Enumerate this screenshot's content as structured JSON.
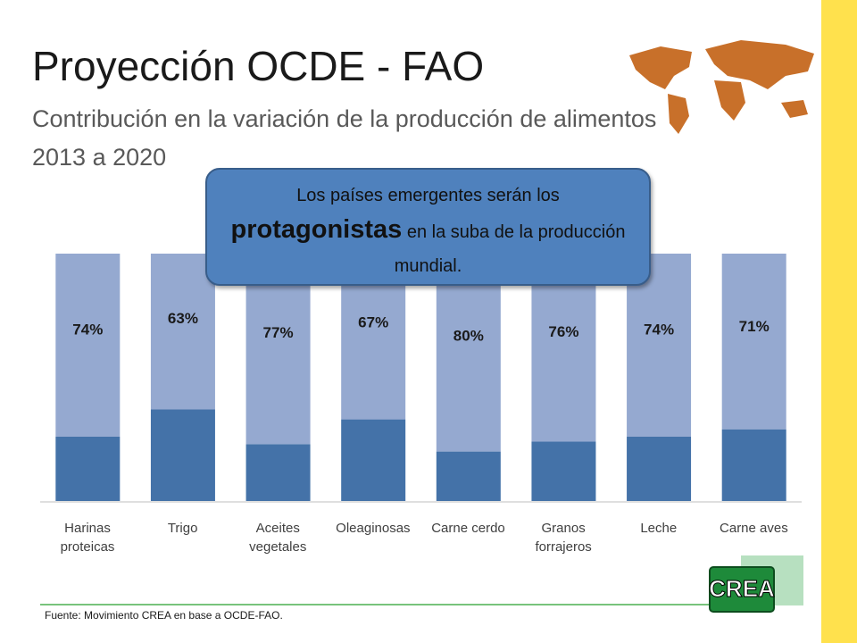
{
  "title": "Proyección OCDE - FAO",
  "subtitle": [
    "Contribución en la variación de la producción de alimentos",
    "2013 a 2020"
  ],
  "callout": {
    "before": "Los países emergentes serán los",
    "bold": "protagonistas",
    "after": "en la suba de la producción mundial."
  },
  "source": "Fuente: Movimiento CREA en base a OCDE-FAO.",
  "logo": "CREA",
  "chart_data": {
    "type": "stacked_bar",
    "categories": [
      "Harinas\nproteicas",
      "Trigo",
      "Aceites\nvegetales",
      "Oleaginosas",
      "Carne cerdo",
      "Granos\nforrajeros",
      "Leche",
      "Carne aves"
    ],
    "series": [
      {
        "color": "#4472a8",
        "values": [
          26,
          37,
          23,
          33,
          20,
          24,
          26,
          29
        ]
      },
      {
        "color": "#95a9d0",
        "values": [
          74,
          63,
          77,
          67,
          80,
          76,
          74,
          71
        ],
        "value_labels": [
          "74%",
          "63%",
          "77%",
          "67%",
          "80%",
          "76%",
          "74%",
          "71%"
        ]
      }
    ],
    "ylim": [
      0,
      100
    ]
  }
}
